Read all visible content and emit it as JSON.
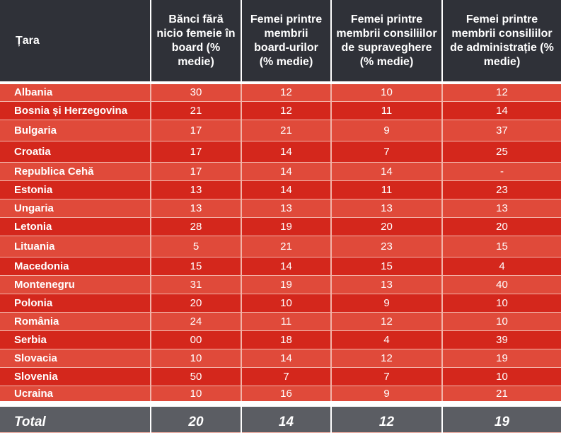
{
  "headers": [
    "Țara",
    "Bănci fără nicio femeie în board (% medie)",
    "Femei printre membrii board-urilor (% medie)",
    "Femei printre membrii consiliilor de supraveghere (% medie)",
    "Femei printre membrii consiliilor de administrație (% medie)"
  ],
  "rows": [
    [
      "Albania",
      "30",
      "12",
      "10",
      "12"
    ],
    [
      "Bosnia și Herzegovina",
      "21",
      "12",
      "11",
      "14"
    ],
    [
      "Bulgaria",
      "17",
      "21",
      "9",
      "37"
    ],
    [
      "Croatia",
      "17",
      "14",
      "7",
      "25"
    ],
    [
      "Republica Cehă",
      "17",
      "14",
      "14",
      "-"
    ],
    [
      "Estonia",
      "13",
      "14",
      "11",
      "23"
    ],
    [
      "Ungaria",
      "13",
      "13",
      "13",
      "13"
    ],
    [
      "Letonia",
      "28",
      "19",
      "20",
      "20"
    ],
    [
      "Lituania",
      "5",
      "21",
      "23",
      "15"
    ],
    [
      "Macedonia",
      "15",
      "14",
      "15",
      "4"
    ],
    [
      "Montenegru",
      "31",
      "19",
      "13",
      "40"
    ],
    [
      "Polonia",
      "20",
      "10",
      "9",
      "10"
    ],
    [
      "România",
      "24",
      "11",
      "12",
      "10"
    ],
    [
      "Serbia",
      "00",
      "18",
      "4",
      "39"
    ],
    [
      "Slovacia",
      "10",
      "14",
      "12",
      "19"
    ],
    [
      "Slovenia",
      "50",
      "7",
      "7",
      "10"
    ],
    [
      "Ucraina",
      "10",
      "16",
      "9",
      "21"
    ]
  ],
  "total": [
    "Total",
    "20",
    "14",
    "12",
    "19"
  ],
  "colors": {
    "header_bg": "#2f3138",
    "row_light": "#e04a3a",
    "row_dark": "#d4271c",
    "total_bg": "#5b5d63"
  }
}
